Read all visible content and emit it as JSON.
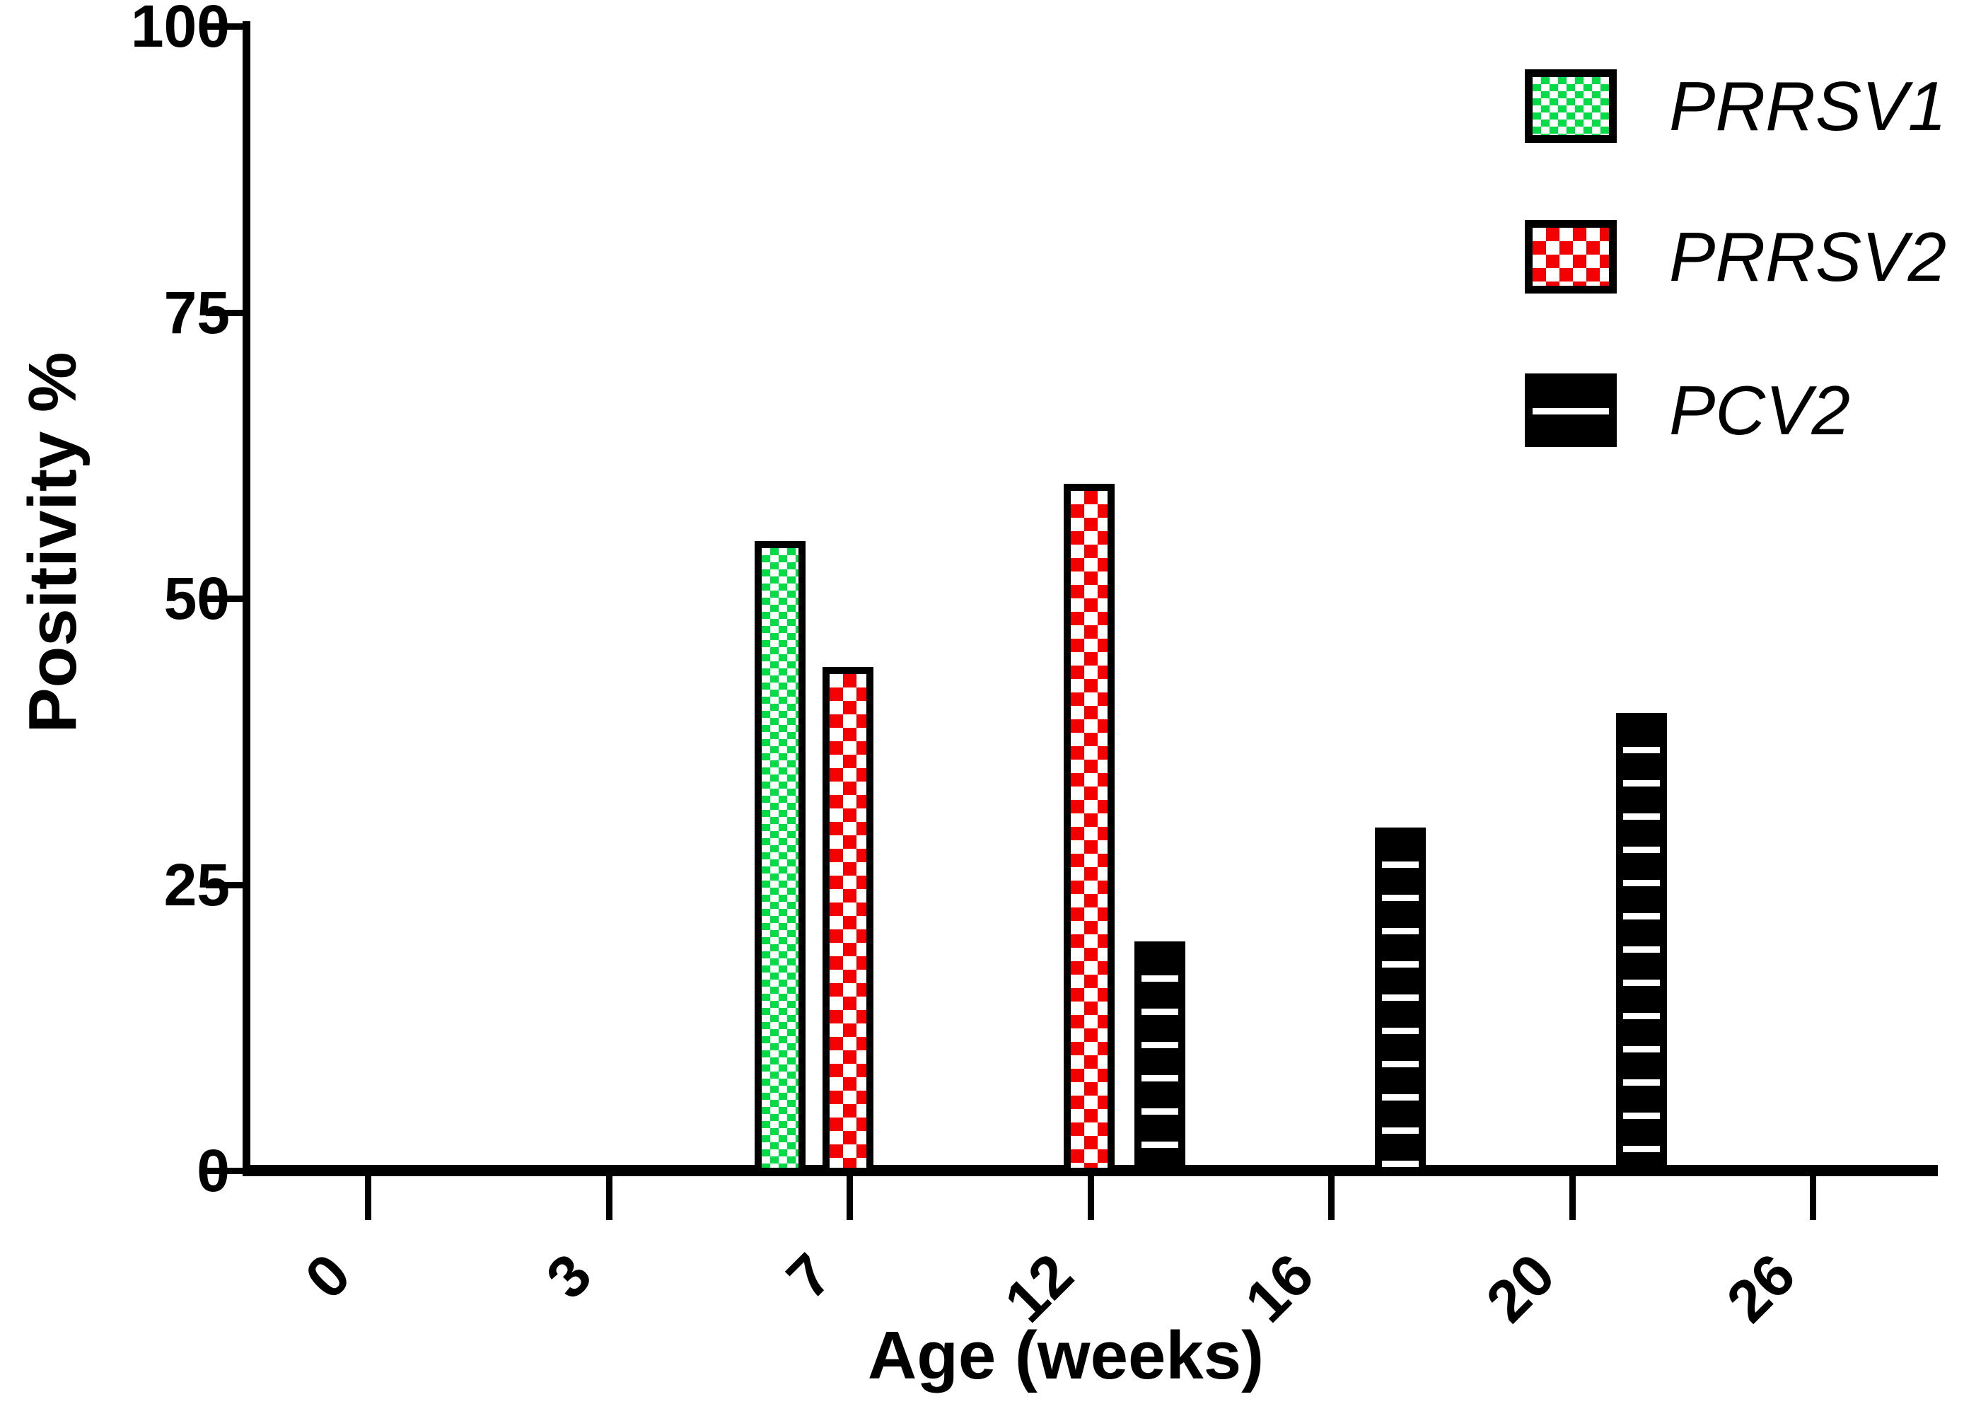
{
  "chart_data": {
    "type": "bar",
    "title": "",
    "xlabel": "Age (weeks)",
    "ylabel": "Positivity %",
    "categories": [
      "0",
      "3",
      "7",
      "12",
      "16",
      "20",
      "26"
    ],
    "series": [
      {
        "name": "PRRSV1",
        "pattern": "green-checker",
        "color": "#00DC46",
        "values": [
          0,
          0,
          55,
          0,
          0,
          0,
          0
        ]
      },
      {
        "name": "PRRSV2",
        "pattern": "red-checker",
        "color": "#F40000",
        "values": [
          0,
          0,
          44,
          60,
          0,
          0,
          0
        ]
      },
      {
        "name": "PCV2",
        "pattern": "black-hlines",
        "color": "#000000",
        "values": [
          0,
          0,
          0,
          20,
          30,
          40,
          0
        ]
      }
    ],
    "ylim": [
      0,
      100
    ],
    "yticks": [
      "0",
      "25",
      "50",
      "75",
      "100"
    ],
    "grid": false,
    "legend_position": "top-right",
    "axis_color": "#000000",
    "background_color": "#ffffff"
  }
}
